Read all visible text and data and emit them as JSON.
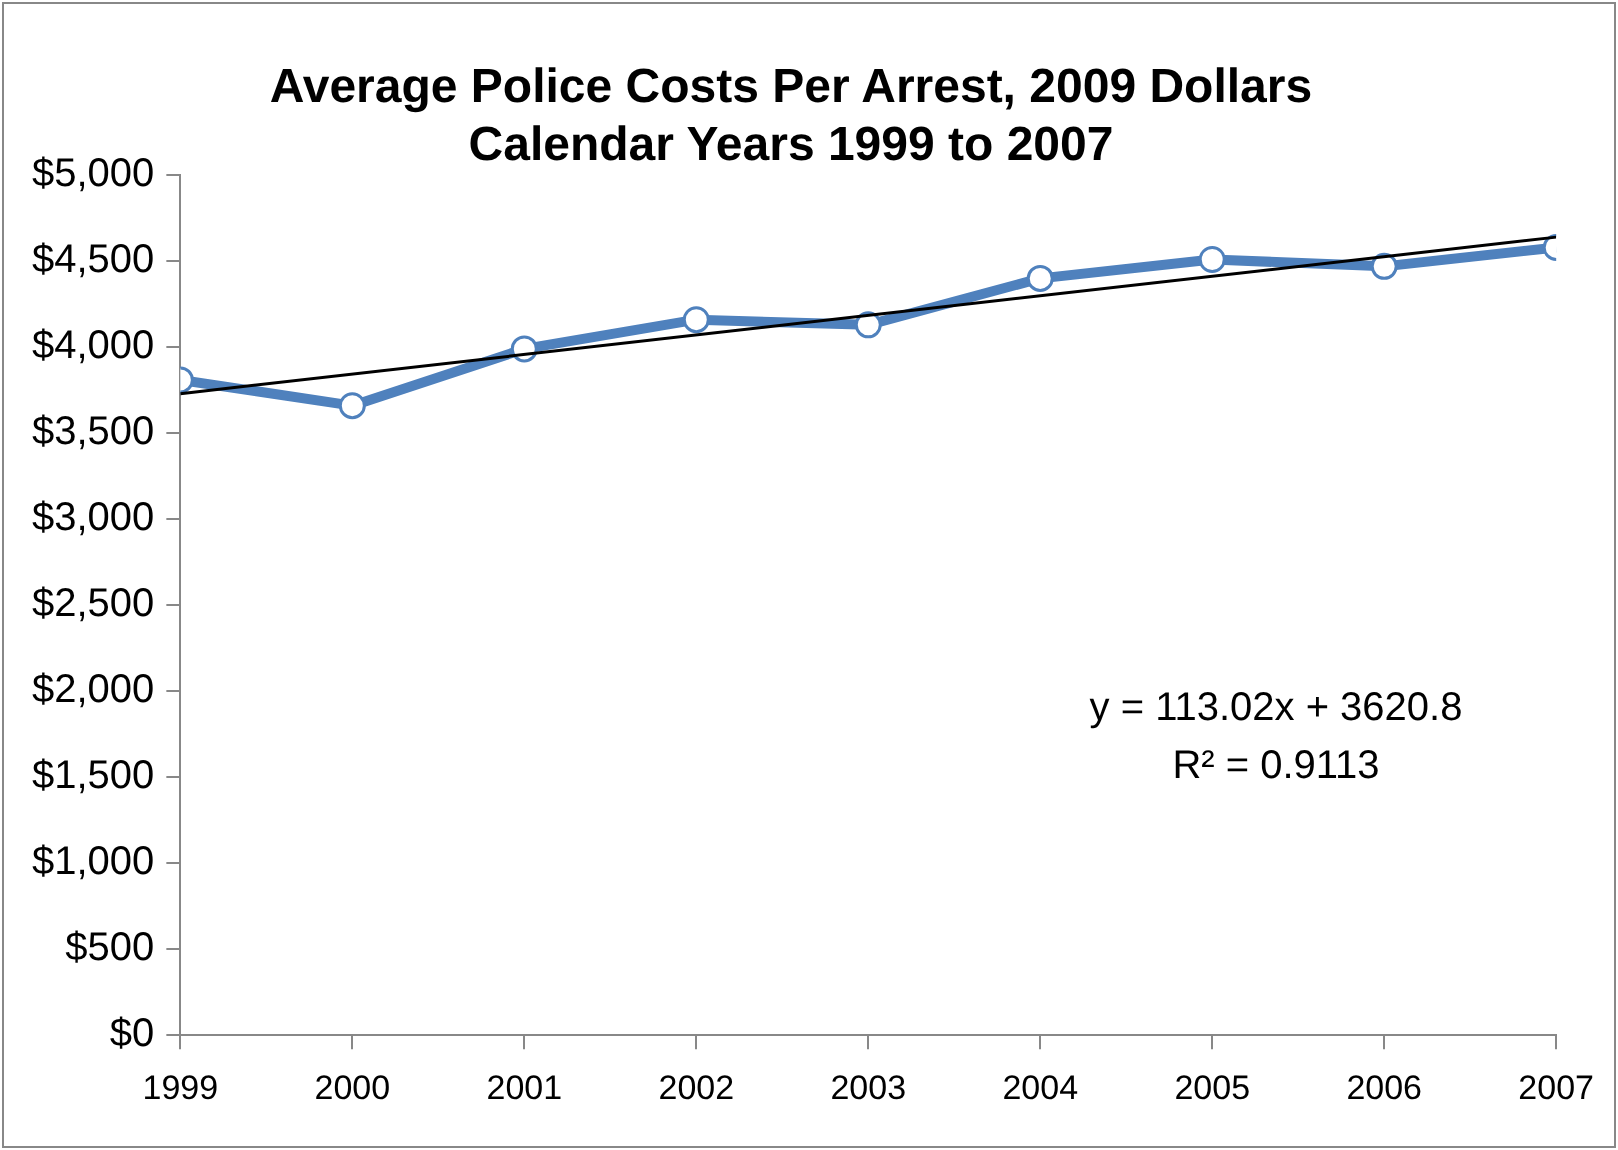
{
  "chart_data": {
    "type": "line",
    "title": [
      "Average Police Costs Per Arrest, 2009 Dollars",
      "Calendar Years 1999 to 2007"
    ],
    "series": [
      {
        "color": "#4f81bd",
        "marker": "circle",
        "x": [
          1999,
          2000,
          2001,
          2002,
          2003,
          2004,
          2005,
          2006,
          2007
        ],
        "values": [
          3810,
          3660,
          3990,
          4160,
          4130,
          4400,
          4510,
          4470,
          4580
        ]
      },
      {
        "color": "#000000",
        "marker": "none",
        "x": [
          1999,
          2007
        ],
        "values": [
          3730,
          4640
        ]
      }
    ],
    "xlim": [
      1999,
      2007
    ],
    "xticks": [
      1999,
      2000,
      2001,
      2002,
      2003,
      2004,
      2005,
      2006,
      2007
    ],
    "ylim": [
      0,
      5000
    ],
    "yticks": [
      {
        "value": 0,
        "label": "$0"
      },
      {
        "value": 500,
        "label": "$500"
      },
      {
        "value": 1000,
        "label": "$1,000"
      },
      {
        "value": 1500,
        "label": "$1,500"
      },
      {
        "value": 2000,
        "label": "$2,000"
      },
      {
        "value": 2500,
        "label": "$2,500"
      },
      {
        "value": 3000,
        "label": "$3,000"
      },
      {
        "value": 3500,
        "label": "$3,500"
      },
      {
        "value": 4000,
        "label": "$4,000"
      },
      {
        "value": 4500,
        "label": "$4,500"
      },
      {
        "value": 5000,
        "label": "$5,000"
      }
    ],
    "annotations": [
      "y = 113.02x + 3620.8",
      "R² = 0.9113"
    ],
    "grid": false,
    "legend": false
  }
}
